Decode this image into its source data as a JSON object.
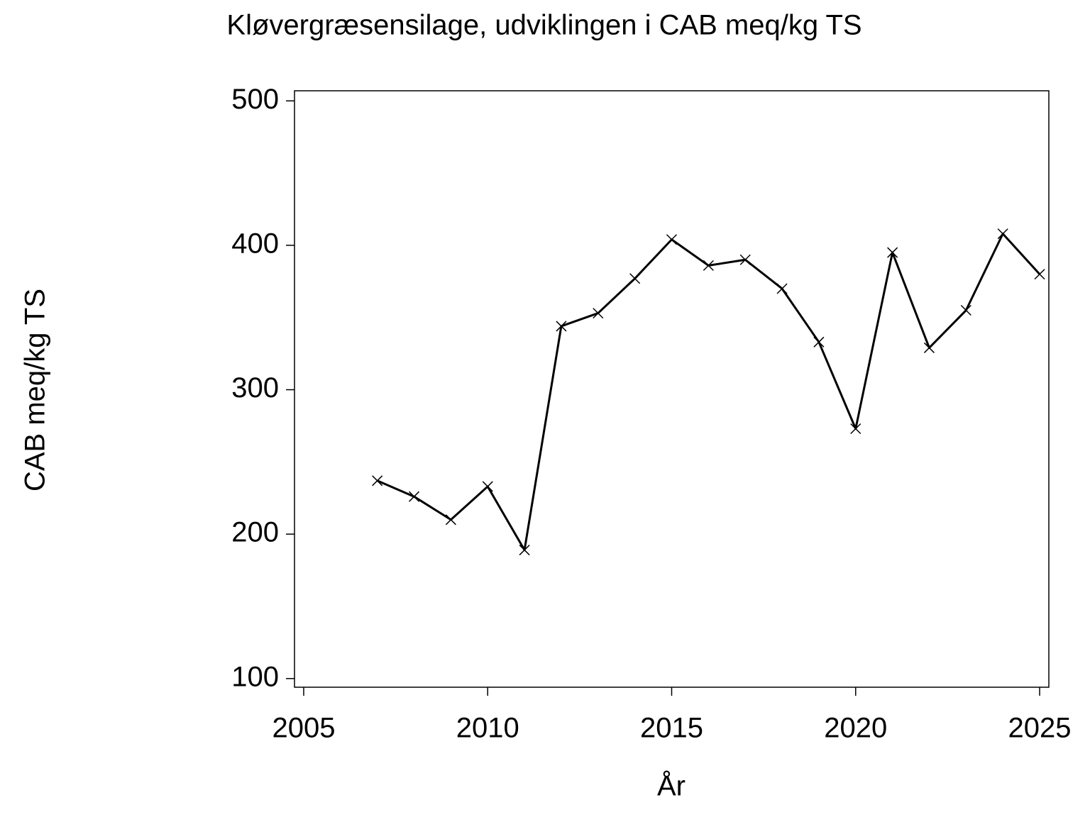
{
  "chart_data": {
    "type": "line",
    "title": "Kløvergræsensilage,  udviklingen  i  CAB  meq/kg  TS",
    "x_label": "År",
    "y_label": "CAB  meq/kg  TS",
    "x": [
      2007,
      2008,
      2009,
      2010,
      2011,
      2012,
      2013,
      2014,
      2015,
      2016,
      2017,
      2018,
      2019,
      2020,
      2021,
      2022,
      2023,
      2024,
      2025
    ],
    "series": [
      {
        "color": "#000000",
        "marker": "x",
        "values": [
          237,
          226,
          210,
          233,
          189,
          344,
          353,
          377,
          404,
          386,
          390,
          370,
          333,
          273,
          395,
          329,
          355,
          408,
          380
        ]
      }
    ],
    "xlim": [
      2004.75,
      2025.25
    ],
    "xticks": [
      2005,
      2010,
      2015,
      2020,
      2025
    ],
    "ylim": [
      94,
      507
    ],
    "yticks": [
      100,
      200,
      300,
      400,
      500
    ],
    "grid": false
  }
}
